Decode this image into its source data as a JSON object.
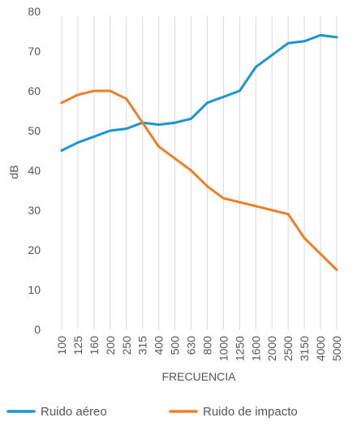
{
  "chart_data": {
    "type": "line",
    "title": "",
    "xlabel": "FRECUENCIA",
    "ylabel": "dB",
    "ylim": [
      0,
      80
    ],
    "yticks": [
      0,
      10,
      20,
      30,
      40,
      50,
      60,
      70,
      80
    ],
    "grid": "vertical",
    "legend": "bottom",
    "categories": [
      "100",
      "125",
      "160",
      "200",
      "250",
      "315",
      "400",
      "500",
      "630",
      "800",
      "1000",
      "1250",
      "1600",
      "2000",
      "2500",
      "3150",
      "4000",
      "5000"
    ],
    "series": [
      {
        "name": "Ruido aéreo",
        "color": "#1b95d0",
        "values": [
          45,
          47,
          48.5,
          50,
          50.5,
          52,
          51.5,
          52,
          53,
          57,
          58.5,
          60,
          66,
          69,
          72,
          72.5,
          74,
          73.5
        ]
      },
      {
        "name": "Ruido de impacto",
        "color": "#f07e26",
        "values": [
          57,
          59,
          60,
          60,
          58,
          52,
          46,
          43,
          40,
          36,
          33,
          32,
          31,
          30,
          29,
          23,
          19,
          15
        ]
      }
    ]
  }
}
